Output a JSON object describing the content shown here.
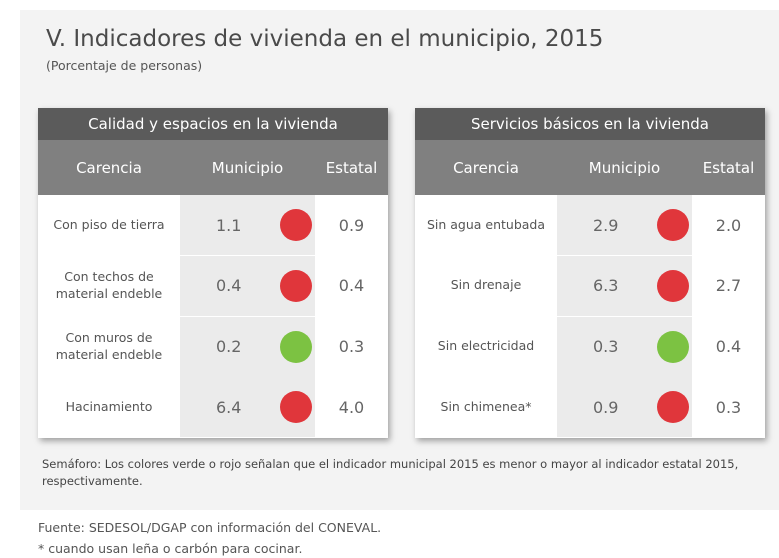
{
  "title": "V. Indicadores de vivienda en el municipio, 2015",
  "subtitle": "(Porcentaje de personas)",
  "tables": [
    {
      "title": "Calidad y espacios en la vivienda",
      "headers": [
        "Carencia",
        "Municipio",
        "Estatal"
      ],
      "rows": [
        {
          "label": "Con piso de tierra",
          "municipio": "1.1",
          "estatal": "0.9",
          "color": "#e0363b"
        },
        {
          "label": "Con techos de material endeble",
          "municipio": "0.4",
          "estatal": "0.4",
          "color": "#e0363b"
        },
        {
          "label": "Con muros de material endeble",
          "municipio": "0.2",
          "estatal": "0.3",
          "color": "#7cc242"
        },
        {
          "label": "Hacinamiento",
          "municipio": "6.4",
          "estatal": "4.0",
          "color": "#e0363b"
        }
      ]
    },
    {
      "title": "Servicios básicos en la vivienda",
      "headers": [
        "Carencia",
        "Municipio",
        "Estatal"
      ],
      "rows": [
        {
          "label": "Sin agua entubada",
          "municipio": "2.9",
          "estatal": "2.0",
          "color": "#e0363b"
        },
        {
          "label": "Sin drenaje",
          "municipio": "6.3",
          "estatal": "2.7",
          "color": "#e0363b"
        },
        {
          "label": "Sin electricidad",
          "municipio": "0.3",
          "estatal": "0.4",
          "color": "#7cc242"
        },
        {
          "label": "Sin chimenea*",
          "municipio": "0.9",
          "estatal": "0.3",
          "color": "#e0363b"
        }
      ]
    }
  ],
  "note": "Semáforo: Los colores verde o rojo señalan que el indicador municipal 2015 es menor o mayor al indicador estatal 2015, respectivamente.",
  "source": "Fuente: SEDESOL/DGAP con información del CONEVAL.",
  "footnote": "* cuando usan leña o carbón para cocinar."
}
